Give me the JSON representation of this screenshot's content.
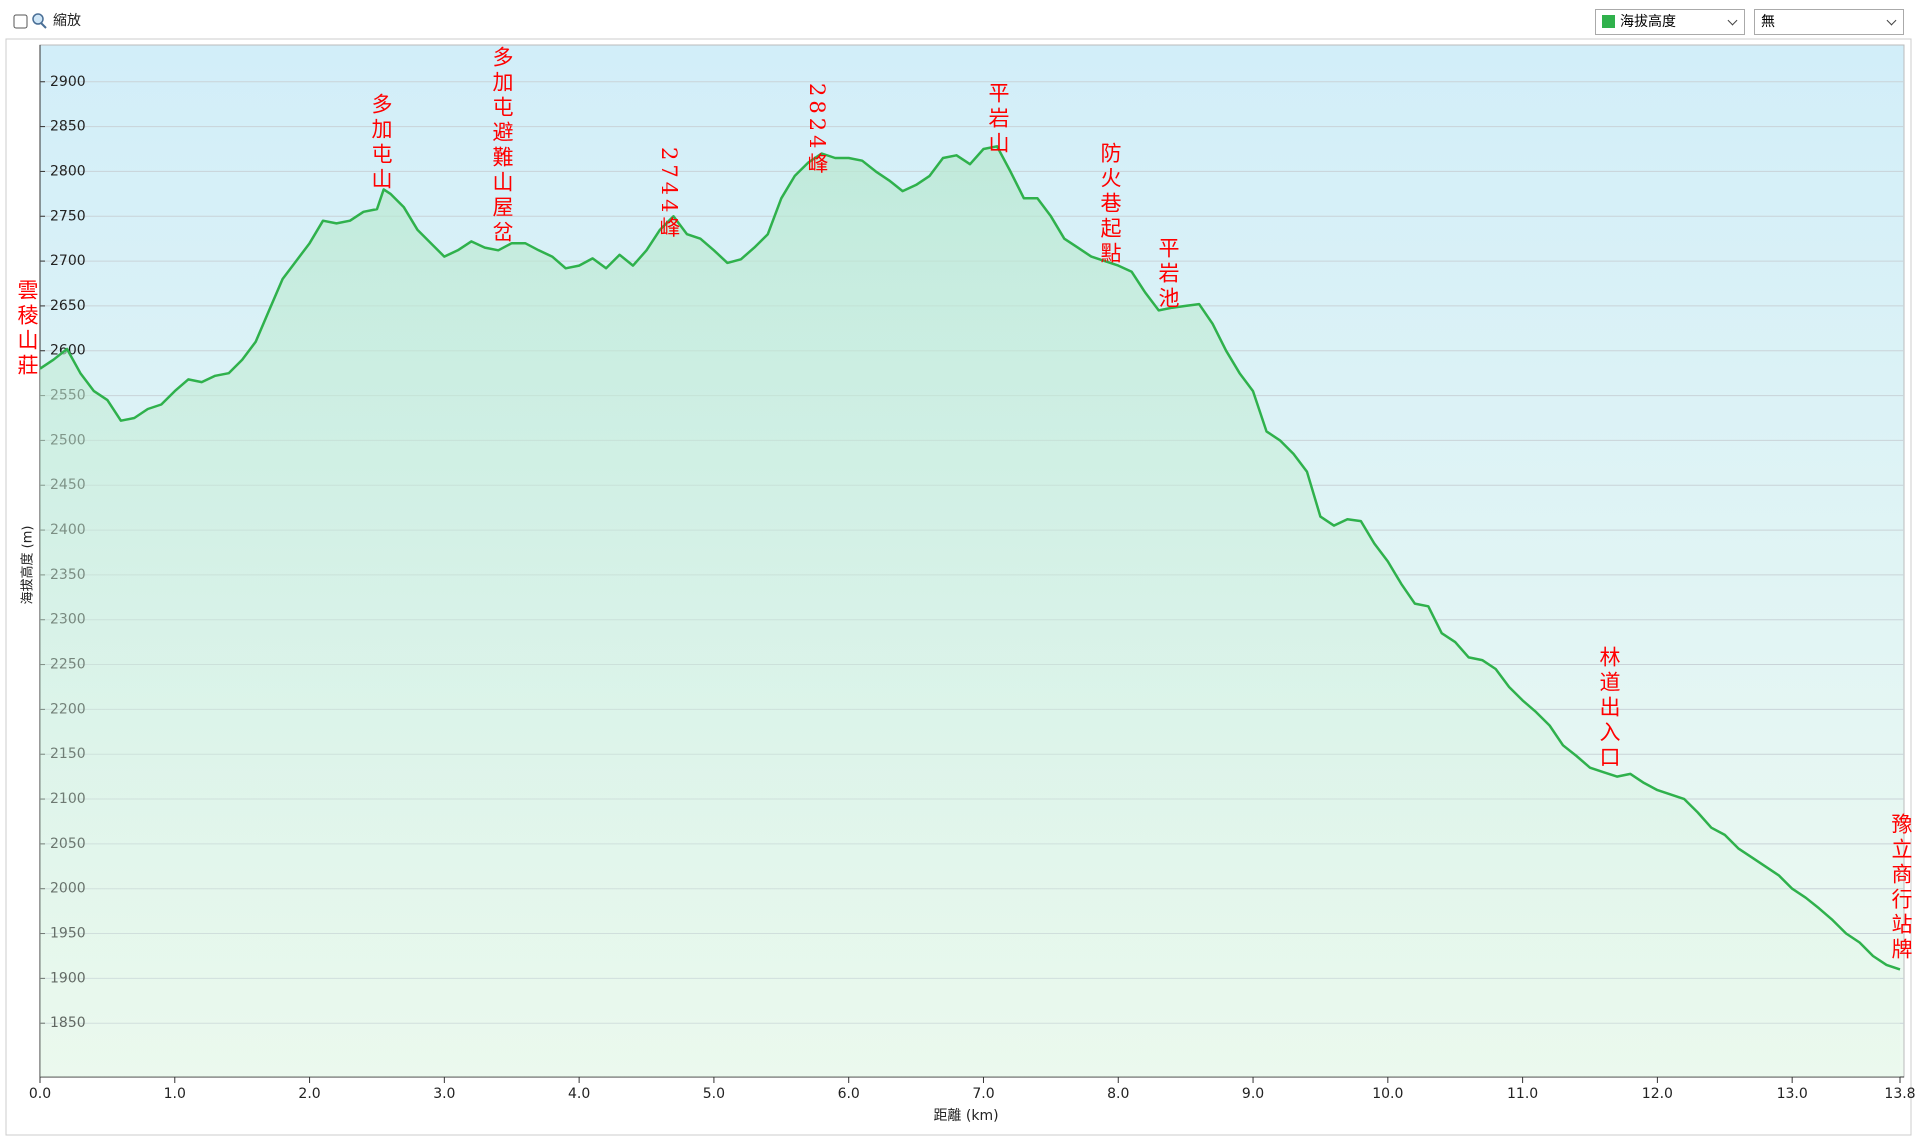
{
  "ui": {
    "zoom_label": "縮放",
    "second_select": "無"
  },
  "chart_data": {
    "type": "line",
    "x_label": "距離 (km)",
    "y_label": "海拔高度 (m)",
    "x": [
      0.0,
      0.1,
      0.2,
      0.3,
      0.4,
      0.5,
      0.6,
      0.7,
      0.8,
      0.9,
      1.0,
      1.1,
      1.2,
      1.3,
      1.4,
      1.5,
      1.6,
      1.7,
      1.8,
      1.9,
      2.0,
      2.1,
      2.2,
      2.3,
      2.4,
      2.5,
      2.55,
      2.6,
      2.7,
      2.8,
      2.9,
      3.0,
      3.1,
      3.2,
      3.3,
      3.4,
      3.5,
      3.6,
      3.7,
      3.8,
      3.9,
      4.0,
      4.1,
      4.2,
      4.3,
      4.4,
      4.5,
      4.6,
      4.7,
      4.8,
      4.9,
      5.0,
      5.1,
      5.2,
      5.3,
      5.4,
      5.5,
      5.6,
      5.7,
      5.8,
      5.9,
      6.0,
      6.1,
      6.2,
      6.3,
      6.4,
      6.5,
      6.6,
      6.7,
      6.8,
      6.9,
      7.0,
      7.1,
      7.2,
      7.3,
      7.4,
      7.5,
      7.6,
      7.7,
      7.8,
      7.9,
      8.0,
      8.1,
      8.2,
      8.3,
      8.4,
      8.5,
      8.6,
      8.7,
      8.8,
      8.9,
      9.0,
      9.1,
      9.2,
      9.3,
      9.4,
      9.5,
      9.6,
      9.7,
      9.8,
      9.9,
      10.0,
      10.1,
      10.2,
      10.3,
      10.4,
      10.5,
      10.6,
      10.7,
      10.8,
      10.9,
      11.0,
      11.1,
      11.2,
      11.3,
      11.4,
      11.5,
      11.6,
      11.7,
      11.8,
      11.9,
      12.0,
      12.1,
      12.2,
      12.3,
      12.4,
      12.5,
      12.6,
      12.7,
      12.8,
      12.9,
      13.0,
      13.1,
      13.2,
      13.3,
      13.4,
      13.5,
      13.6,
      13.7,
      13.8
    ],
    "series": [
      {
        "name": "海拔高度",
        "color": "#2fb14c",
        "values": [
          2580,
          2590,
          2602,
          2575,
          2555,
          2545,
          2522,
          2525,
          2535,
          2540,
          2555,
          2568,
          2565,
          2572,
          2575,
          2590,
          2610,
          2645,
          2680,
          2700,
          2720,
          2745,
          2742,
          2745,
          2755,
          2758,
          2780,
          2775,
          2760,
          2735,
          2720,
          2705,
          2712,
          2722,
          2715,
          2712,
          2720,
          2720,
          2712,
          2705,
          2692,
          2695,
          2703,
          2692,
          2707,
          2695,
          2712,
          2735,
          2750,
          2730,
          2725,
          2712,
          2698,
          2702,
          2715,
          2730,
          2770,
          2795,
          2810,
          2820,
          2815,
          2815,
          2812,
          2800,
          2790,
          2778,
          2785,
          2795,
          2815,
          2818,
          2808,
          2825,
          2828,
          2800,
          2770,
          2770,
          2750,
          2725,
          2715,
          2705,
          2700,
          2695,
          2688,
          2665,
          2645,
          2648,
          2650,
          2652,
          2630,
          2600,
          2575,
          2555,
          2510,
          2500,
          2485,
          2465,
          2415,
          2405,
          2412,
          2410,
          2385,
          2365,
          2340,
          2318,
          2315,
          2285,
          2275,
          2258,
          2255,
          2245,
          2225,
          2210,
          2197,
          2182,
          2160,
          2148,
          2135,
          2130,
          2125,
          2128,
          2118,
          2110,
          2105,
          2100,
          2085,
          2068,
          2060,
          2045,
          2035,
          2025,
          2015,
          2000,
          1990,
          1978,
          1965,
          1950,
          1940,
          1925,
          1915,
          1910
        ]
      }
    ],
    "xlim": [
      0,
      13.8
    ],
    "ylim": [
      1790,
      2941
    ],
    "xticks": [
      {
        "value": 0,
        "label": "0.0"
      },
      {
        "value": 1,
        "label": "1.0"
      },
      {
        "value": 2,
        "label": "2.0"
      },
      {
        "value": 3,
        "label": "3.0"
      },
      {
        "value": 4,
        "label": "4.0"
      },
      {
        "value": 5,
        "label": "5.0"
      },
      {
        "value": 6,
        "label": "6.0"
      },
      {
        "value": 7,
        "label": "7.0"
      },
      {
        "value": 8,
        "label": "8.0"
      },
      {
        "value": 9,
        "label": "9.0"
      },
      {
        "value": 10,
        "label": "10.0"
      },
      {
        "value": 11,
        "label": "11.0"
      },
      {
        "value": 12,
        "label": "12.0"
      },
      {
        "value": 13,
        "label": "13.0"
      },
      13.8
    ],
    "yticks": [
      1850,
      1900,
      1950,
      2000,
      2050,
      2100,
      2150,
      2200,
      2250,
      2300,
      2350,
      2400,
      2450,
      2500,
      2550,
      2600,
      2650,
      2700,
      2750,
      2800,
      2850,
      2900
    ],
    "grid": true,
    "annotations": [
      "雲稜山莊",
      "多加屯山",
      "多加屯避難山屋岔",
      "2744峰",
      "2824峰",
      "平岩山",
      "防火巷起點",
      "平岩池",
      "林道出入口",
      "豫立商行站牌"
    ],
    "annotation_color": "#ff0000"
  }
}
